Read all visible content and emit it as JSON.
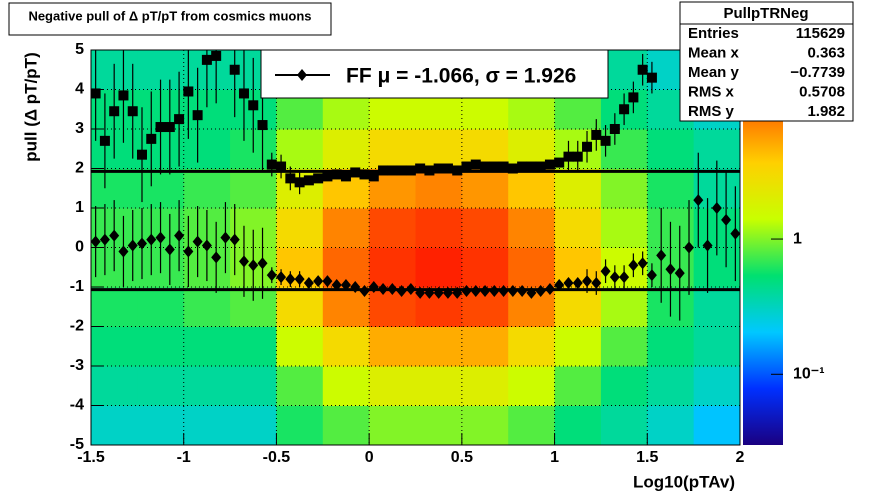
{
  "chart_data": {
    "type": "heatmap",
    "title": "Negative pull of Δ pT/pT from cosmics muons",
    "xlabel": "Log10(pTAv)",
    "ylabel": "pull (Δ pT/pT)",
    "xlim": [
      -1.5,
      2
    ],
    "ylim": [
      -5,
      5
    ],
    "xticks": [
      -1.5,
      -1,
      -0.5,
      0,
      0.5,
      1,
      1.5,
      2
    ],
    "yticks": [
      -5,
      -4,
      -3,
      -2,
      -1,
      0,
      1,
      2,
      3,
      4,
      5
    ],
    "grid": true,
    "x_bins": [
      -1.5,
      -1.25,
      -1,
      -0.75,
      -0.5,
      -0.25,
      0,
      0.25,
      0.5,
      0.75,
      1,
      1.25,
      1.5,
      1.75,
      2
    ],
    "y_bins": [
      -5,
      -4,
      -3,
      -2,
      -1,
      0,
      1,
      2,
      3,
      4,
      5
    ],
    "z": [
      [
        0.3,
        0.3,
        0.3,
        0.3,
        0.6,
        0.8,
        1,
        1,
        1,
        0.8,
        0.5,
        0.4,
        0.3,
        0.2
      ],
      [
        0.4,
        0.4,
        0.4,
        0.4,
        0.8,
        1.5,
        2,
        2,
        2,
        1.5,
        0.8,
        0.5,
        0.4,
        0.3
      ],
      [
        0.5,
        0.5,
        0.5,
        0.5,
        1.5,
        3,
        5,
        5,
        5,
        3,
        1.5,
        0.8,
        0.5,
        0.4
      ],
      [
        0.6,
        0.6,
        0.7,
        0.8,
        3,
        7,
        12,
        14,
        12,
        7,
        3,
        1.2,
        0.6,
        0.4
      ],
      [
        0.7,
        0.7,
        0.8,
        1,
        4,
        9,
        15,
        18,
        15,
        9,
        4,
        1.5,
        0.7,
        0.5
      ],
      [
        0.7,
        0.7,
        0.8,
        1,
        3,
        7,
        12,
        14,
        12,
        7,
        3,
        1.2,
        0.7,
        0.5
      ],
      [
        0.6,
        0.6,
        0.7,
        0.8,
        2,
        4,
        6,
        7,
        6,
        4,
        2,
        1,
        0.6,
        0.4
      ],
      [
        0.5,
        0.5,
        0.5,
        0.6,
        1.2,
        2,
        3,
        3,
        3,
        2,
        1.2,
        0.7,
        0.5,
        0.4
      ],
      [
        0.5,
        0.5,
        0.5,
        0.5,
        0.8,
        1.2,
        1.5,
        1.5,
        1.5,
        1.2,
        0.8,
        0.5,
        0.4,
        0.3
      ],
      [
        0.4,
        0.4,
        0.4,
        0.4,
        0.6,
        0.8,
        1,
        1,
        1,
        0.8,
        0.6,
        0.4,
        0.3,
        0.3
      ]
    ],
    "zscale": "log",
    "zlim": [
      0.03,
      25
    ],
    "zticks": [
      1,
      {
        "value": 0.1,
        "label": "10⁻¹"
      }
    ],
    "palette": [
      "#1a0080",
      "#0030ff",
      "#00c8ff",
      "#00e070",
      "#c8ff00",
      "#ffd000",
      "#ff6000",
      "#ff0000"
    ],
    "hlines": [
      1.926,
      -1.066
    ],
    "series": [
      {
        "marker": "square",
        "color": "#000000",
        "x": [
          -1.475,
          -1.425,
          -1.375,
          -1.325,
          -1.275,
          -1.225,
          -1.175,
          -1.125,
          -1.075,
          -1.025,
          -0.975,
          -0.925,
          -0.875,
          -0.825,
          -0.775,
          -0.725,
          -0.675,
          -0.625,
          -0.575,
          -0.525,
          -0.475,
          -0.425,
          -0.375,
          -0.325,
          -0.275,
          -0.225,
          -0.175,
          -0.125,
          -0.075,
          -0.025,
          0.025,
          0.075,
          0.125,
          0.175,
          0.225,
          0.275,
          0.325,
          0.375,
          0.425,
          0.475,
          0.525,
          0.575,
          0.625,
          0.675,
          0.725,
          0.775,
          0.825,
          0.875,
          0.925,
          0.975,
          1.025,
          1.075,
          1.125,
          1.175,
          1.225,
          1.275,
          1.325,
          1.375,
          1.425,
          1.475,
          1.525,
          1.575,
          1.625,
          1.675,
          1.725,
          1.775,
          1.825,
          1.875,
          1.925,
          1.975
        ],
        "values": [
          3.9,
          2.7,
          3.45,
          3.85,
          3.45,
          2.35,
          2.75,
          3.05,
          3.05,
          3.25,
          3.95,
          3.35,
          4.75,
          4.85,
          null,
          4.5,
          3.9,
          3.6,
          3.1,
          2.1,
          2.05,
          1.75,
          1.65,
          1.7,
          1.75,
          1.8,
          1.85,
          1.8,
          1.9,
          1.85,
          1.8,
          1.95,
          1.95,
          1.95,
          1.95,
          2.0,
          1.95,
          2.0,
          2.0,
          1.95,
          2.05,
          2.1,
          2.05,
          2.05,
          2.05,
          2.0,
          2.05,
          2.05,
          2.05,
          2.1,
          2.15,
          2.3,
          2.3,
          2.55,
          2.85,
          2.7,
          3.0,
          3.5,
          3.8,
          4.5,
          4.3,
          null,
          null,
          null,
          null,
          null,
          null,
          null,
          null,
          null
        ],
        "errors": [
          1.2,
          1.2,
          1.2,
          1.2,
          1.2,
          1.2,
          1.2,
          1.2,
          1.2,
          1.2,
          1.2,
          1.2,
          1.2,
          1.2,
          null,
          1.2,
          1.2,
          1.2,
          1.2,
          0.3,
          0.3,
          0.3,
          0.3,
          0.05,
          0.05,
          0.05,
          0.05,
          0.05,
          0.05,
          0.05,
          0.05,
          0.05,
          0.05,
          0.05,
          0.05,
          0.05,
          0.05,
          0.05,
          0.05,
          0.05,
          0.05,
          0.05,
          0.05,
          0.05,
          0.05,
          0.05,
          0.05,
          0.05,
          0.05,
          0.05,
          0.05,
          0.4,
          0.4,
          0.4,
          0.4,
          0.4,
          0.4,
          0.4,
          0.4,
          0.4,
          0.4,
          null,
          null,
          null,
          null,
          null,
          null,
          null,
          null,
          null
        ]
      },
      {
        "marker": "diamond",
        "color": "#000000",
        "x": [
          -1.475,
          -1.425,
          -1.375,
          -1.325,
          -1.275,
          -1.225,
          -1.175,
          -1.125,
          -1.075,
          -1.025,
          -0.975,
          -0.925,
          -0.875,
          -0.825,
          -0.775,
          -0.725,
          -0.675,
          -0.625,
          -0.575,
          -0.525,
          -0.475,
          -0.425,
          -0.375,
          -0.325,
          -0.275,
          -0.225,
          -0.175,
          -0.125,
          -0.075,
          -0.025,
          0.025,
          0.075,
          0.125,
          0.175,
          0.225,
          0.275,
          0.325,
          0.375,
          0.425,
          0.475,
          0.525,
          0.575,
          0.625,
          0.675,
          0.725,
          0.775,
          0.825,
          0.875,
          0.925,
          0.975,
          1.025,
          1.075,
          1.125,
          1.175,
          1.225,
          1.275,
          1.325,
          1.375,
          1.425,
          1.475,
          1.525,
          1.575,
          1.625,
          1.675,
          1.725,
          1.775,
          1.825,
          1.875,
          1.925,
          1.975
        ],
        "values": [
          0.15,
          0.2,
          0.3,
          -0.1,
          0.05,
          0.1,
          0.2,
          0.25,
          -0.05,
          0.3,
          -0.1,
          0.15,
          0.05,
          -0.25,
          0.25,
          0.2,
          -0.35,
          -0.45,
          -0.4,
          -0.7,
          -0.75,
          -0.8,
          -0.8,
          -0.9,
          -0.85,
          -0.85,
          -0.95,
          -0.95,
          -1.0,
          -1.1,
          -1.0,
          -1.05,
          -1.05,
          -1.1,
          -1.05,
          -1.15,
          -1.15,
          -1.15,
          -1.15,
          -1.15,
          -1.1,
          -1.1,
          -1.1,
          -1.1,
          -1.1,
          -1.1,
          -1.1,
          -1.15,
          -1.1,
          -1.05,
          -0.95,
          -0.9,
          -0.9,
          -0.85,
          -0.9,
          -0.6,
          -0.75,
          -0.75,
          -0.45,
          -0.4,
          -0.7,
          -0.2,
          -0.55,
          -0.65,
          0.0,
          1.2,
          0.05,
          1.0,
          0.7,
          0.35
        ],
        "errors": [
          0.9,
          0.9,
          0.9,
          0.9,
          0.9,
          0.9,
          0.9,
          0.9,
          0.9,
          0.9,
          0.9,
          0.9,
          0.9,
          0.9,
          0.9,
          0.9,
          0.9,
          0.9,
          0.9,
          0.2,
          0.2,
          0.2,
          0.2,
          0.04,
          0.04,
          0.04,
          0.04,
          0.04,
          0.04,
          0.04,
          0.04,
          0.04,
          0.04,
          0.04,
          0.04,
          0.04,
          0.04,
          0.04,
          0.04,
          0.04,
          0.04,
          0.04,
          0.04,
          0.04,
          0.04,
          0.04,
          0.04,
          0.04,
          0.04,
          0.04,
          0.04,
          0.04,
          0.04,
          0.3,
          0.3,
          0.3,
          0.3,
          0.3,
          0.3,
          0.3,
          0.3,
          1.2,
          1.2,
          1.2,
          1.2,
          1.2,
          1.2,
          1.2,
          1.2,
          1.2
        ]
      }
    ],
    "legend": {
      "label": "FF μ = -1.066, σ =   1.926",
      "marker": "diamond"
    },
    "stats": {
      "title": "PullpTRNeg",
      "rows": [
        [
          "Entries",
          "115629"
        ],
        [
          "Mean x",
          "0.363"
        ],
        [
          "Mean y",
          "−0.7739"
        ],
        [
          "RMS x",
          "0.5708"
        ],
        [
          "RMS y",
          "1.982"
        ]
      ]
    }
  }
}
